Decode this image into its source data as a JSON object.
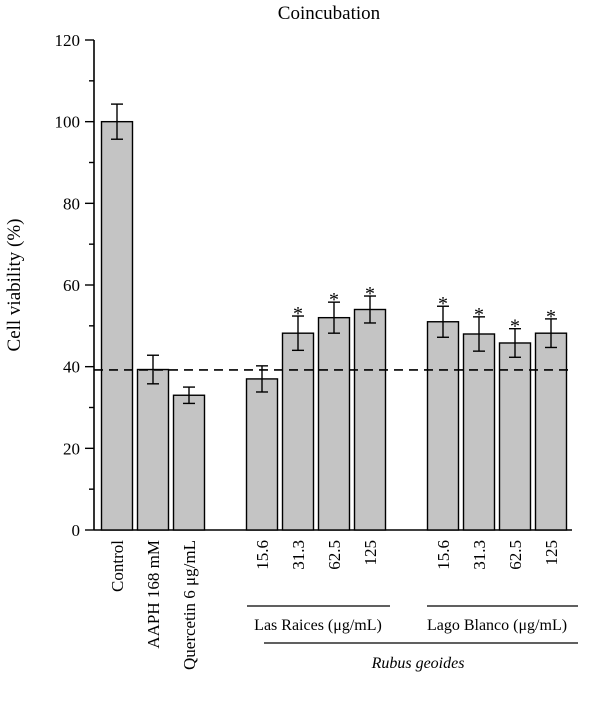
{
  "chart_data": {
    "type": "bar",
    "title": "Coincubation",
    "xlabel": "",
    "ylabel": "Cell viability (%)",
    "ylim": [
      0,
      120
    ],
    "yticks": [
      0,
      20,
      40,
      60,
      80,
      100,
      120
    ],
    "grid": false,
    "reference_line": {
      "y": 39.2,
      "style": "dashed"
    },
    "categories": [
      "Control",
      "AAPH 168 mM",
      "Quercetin 6 μg/mL",
      "15.6",
      "31.3",
      "62.5",
      "125",
      "15.6",
      "31.3",
      "62.5",
      "125"
    ],
    "values": [
      100,
      39.3,
      33,
      37,
      48.2,
      52,
      54,
      51,
      48,
      45.8,
      48.2
    ],
    "errors": [
      4.3,
      3.5,
      2.0,
      3.2,
      4.2,
      3.8,
      3.3,
      3.8,
      4.2,
      3.5,
      3.5
    ],
    "significant": [
      false,
      false,
      false,
      false,
      true,
      true,
      true,
      true,
      true,
      true,
      true
    ],
    "significance_marker": "*",
    "groups": [
      {
        "label": "Las Raices (μg/mL)",
        "categories": [
          "15.6",
          "31.3",
          "62.5",
          "125"
        ]
      },
      {
        "label": "Lago Blanco (μg/mL)",
        "categories": [
          "15.6",
          "31.3",
          "62.5",
          "125"
        ]
      }
    ],
    "species_label": "Rubus geoides",
    "colors": {
      "bar_fill": "#c4c4c4",
      "bar_stroke": "#000000"
    }
  }
}
